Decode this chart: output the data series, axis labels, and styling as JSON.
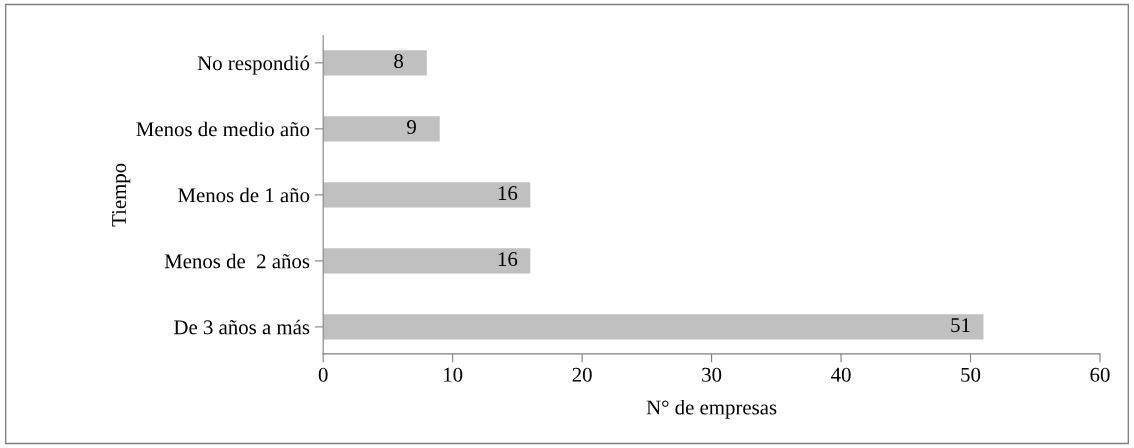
{
  "chart_data": {
    "type": "bar",
    "orientation": "horizontal",
    "xlabel": "N° de empresas",
    "ylabel": "Tiempo",
    "categories": [
      "No respondió",
      "Menos de medio año",
      "Menos de 1 año",
      "Menos de  2 años",
      "De 3 años a más"
    ],
    "values": [
      8,
      9,
      16,
      16,
      51
    ],
    "color": "#c0c0c0",
    "xlim": [
      0,
      60
    ],
    "xticks": [
      0,
      10,
      20,
      30,
      40,
      50,
      60
    ],
    "data_labels": true,
    "grid": false,
    "legend": false
  }
}
